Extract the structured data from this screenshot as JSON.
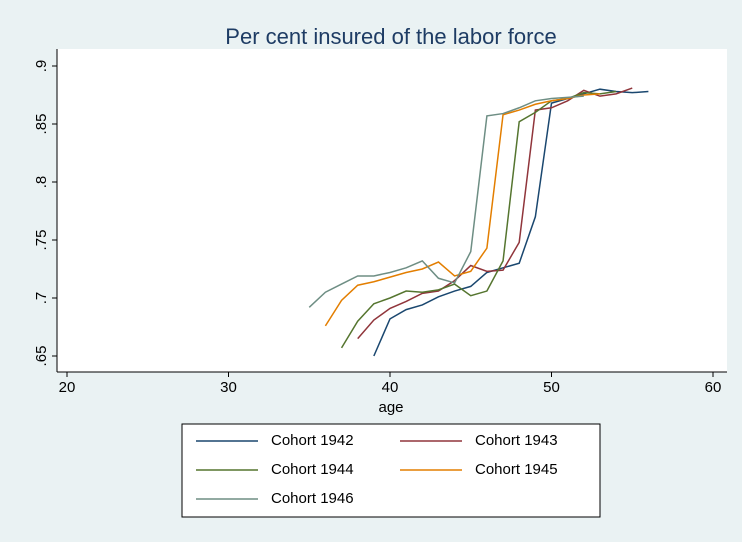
{
  "chart_data": {
    "type": "line",
    "title": "Per cent insured of the labor force",
    "xlabel": "age",
    "xlim": [
      20,
      60
    ],
    "xticks": [
      20,
      30,
      40,
      50,
      60
    ],
    "ylim": [
      0.65,
      0.9
    ],
    "yticks": [
      {
        "value": 0.65,
        "label": ".65"
      },
      {
        "value": 0.7,
        "label": ".7"
      },
      {
        "value": 0.75,
        "label": ".75"
      },
      {
        "value": 0.8,
        "label": ".8"
      },
      {
        "value": 0.85,
        "label": ".85"
      },
      {
        "value": 0.9,
        "label": ".9"
      }
    ],
    "series": [
      {
        "name": "Cohort 1942",
        "color": "#1a476f",
        "x": [
          39,
          40,
          41,
          42,
          43,
          44,
          45,
          46,
          47,
          48,
          49,
          50,
          51,
          52,
          53,
          54,
          55,
          56
        ],
        "values": [
          0.65,
          0.682,
          0.69,
          0.694,
          0.701,
          0.706,
          0.71,
          0.722,
          0.726,
          0.73,
          0.77,
          0.868,
          0.872,
          0.876,
          0.88,
          0.878,
          0.877,
          0.878
        ]
      },
      {
        "name": "Cohort 1943",
        "color": "#90353b",
        "x": [
          38,
          39,
          40,
          41,
          42,
          43,
          44,
          45,
          46,
          47,
          48,
          49,
          50,
          51,
          52,
          53,
          54,
          55
        ],
        "values": [
          0.665,
          0.681,
          0.691,
          0.697,
          0.704,
          0.706,
          0.715,
          0.728,
          0.723,
          0.724,
          0.748,
          0.862,
          0.864,
          0.87,
          0.879,
          0.874,
          0.876,
          0.881
        ]
      },
      {
        "name": "Cohort 1944",
        "color": "#55752f",
        "x": [
          37,
          38,
          39,
          40,
          41,
          42,
          43,
          44,
          45,
          46,
          47,
          48,
          49,
          50,
          51,
          52,
          53,
          54
        ],
        "values": [
          0.657,
          0.68,
          0.695,
          0.7,
          0.706,
          0.705,
          0.707,
          0.712,
          0.702,
          0.706,
          0.732,
          0.852,
          0.86,
          0.87,
          0.872,
          0.877,
          0.876,
          0.878
        ]
      },
      {
        "name": "Cohort 1945",
        "color": "#e37e00",
        "x": [
          36,
          37,
          38,
          39,
          40,
          41,
          42,
          43,
          44,
          45,
          46,
          47,
          48,
          49,
          50,
          51,
          52,
          53
        ],
        "values": [
          0.676,
          0.698,
          0.711,
          0.714,
          0.718,
          0.722,
          0.725,
          0.731,
          0.719,
          0.723,
          0.743,
          0.858,
          0.862,
          0.867,
          0.87,
          0.872,
          0.875,
          0.876
        ]
      },
      {
        "name": "Cohort 1946",
        "color": "#6e8e84",
        "x": [
          35,
          36,
          37,
          38,
          39,
          40,
          41,
          42,
          43,
          44,
          45,
          46,
          47,
          48,
          49,
          50,
          51,
          52
        ],
        "values": [
          0.692,
          0.705,
          0.712,
          0.719,
          0.719,
          0.722,
          0.726,
          0.732,
          0.717,
          0.713,
          0.74,
          0.857,
          0.859,
          0.864,
          0.87,
          0.872,
          0.873,
          0.874
        ]
      }
    ],
    "legend_columns": 2
  }
}
